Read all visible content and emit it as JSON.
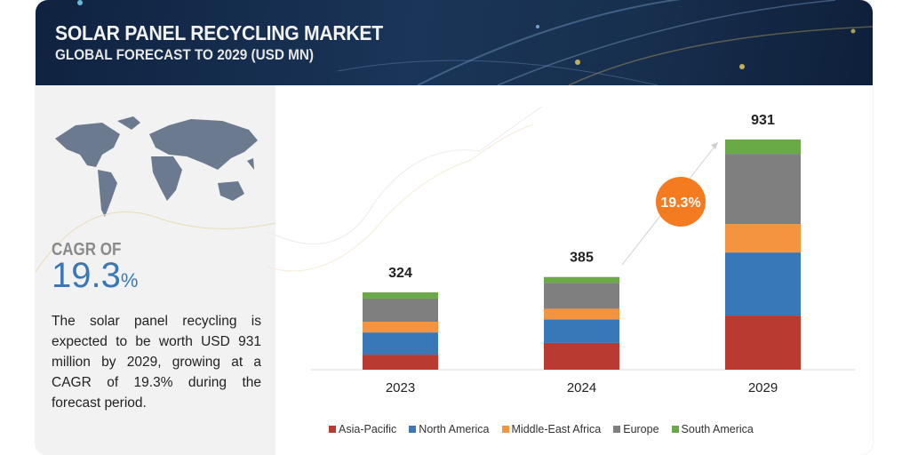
{
  "header": {
    "title": "SOLAR PANEL RECYCLING  MARKET",
    "subtitle": "GLOBAL FORECAST TO 2029 (USD MN)"
  },
  "left_panel": {
    "cagr_label": "CAGR OF",
    "cagr_value": "19.3",
    "cagr_unit": "%",
    "description": "The  solar panel recycling is expected to be worth USD 931 million by 2029, growing at a CAGR of 19.3% during the forecast period."
  },
  "chart_data": {
    "type": "bar",
    "stacked": true,
    "title": "Solar Panel Recycling Market, Global Forecast to 2029 (USD MN)",
    "categories": [
      "2023",
      "2024",
      "2029"
    ],
    "totals": [
      324,
      385,
      931
    ],
    "series": [
      {
        "name": "Asia-Pacific",
        "color": "#b83a30",
        "values": [
          63,
          111,
          219
        ]
      },
      {
        "name": "North America",
        "color": "#3878b8",
        "values": [
          93,
          98,
          255
        ]
      },
      {
        "name": "Middle-East Africa",
        "color": "#f5943f",
        "values": [
          45,
          44,
          115
        ]
      },
      {
        "name": "Europe",
        "color": "#7f7f7f",
        "values": [
          97,
          108,
          284
        ]
      },
      {
        "name": "South America",
        "color": "#6aaa46",
        "values": [
          26,
          24,
          58
        ]
      }
    ],
    "annotation": {
      "text": "19.3%",
      "color": "#f47b20"
    },
    "xlabel": "",
    "ylabel": "",
    "grid": false,
    "legend": "bottom"
  }
}
